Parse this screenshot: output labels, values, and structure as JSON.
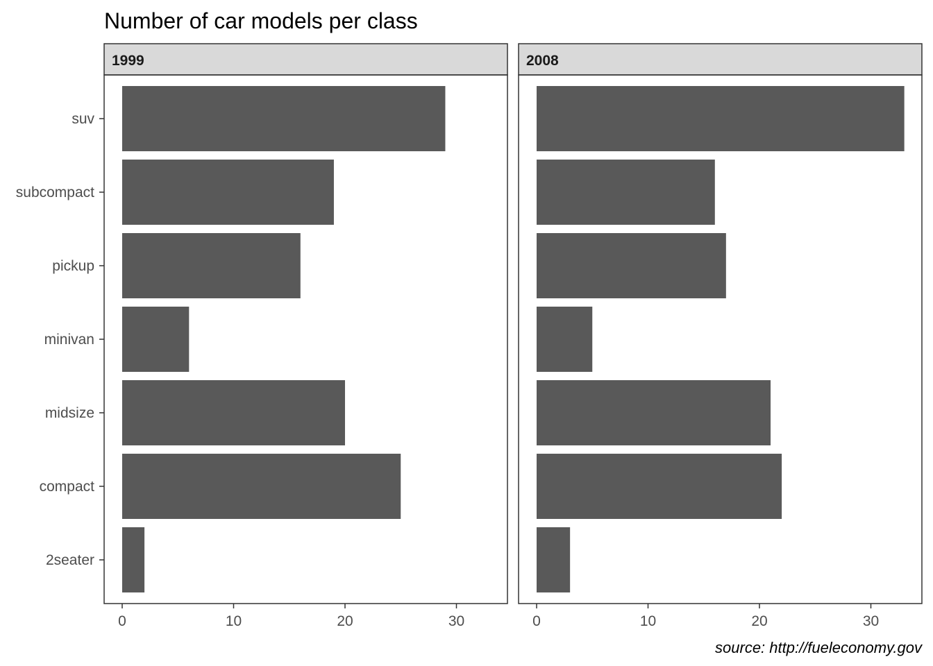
{
  "chart_data": {
    "type": "bar",
    "orientation": "horizontal",
    "title": "Number of car models per class",
    "caption": "source: http://fueleconomy.gov",
    "xlabel": "",
    "ylabel": "",
    "xlim": [
      0,
      34
    ],
    "x_ticks": [
      0,
      10,
      20,
      30
    ],
    "grid": false,
    "bar_color": "#595959",
    "categories": [
      "2seater",
      "compact",
      "midsize",
      "minivan",
      "pickup",
      "subcompact",
      "suv"
    ],
    "facets": [
      {
        "name": "1999",
        "values": [
          2,
          25,
          20,
          6,
          16,
          19,
          29
        ]
      },
      {
        "name": "2008",
        "values": [
          3,
          22,
          21,
          5,
          17,
          16,
          33
        ]
      }
    ]
  }
}
